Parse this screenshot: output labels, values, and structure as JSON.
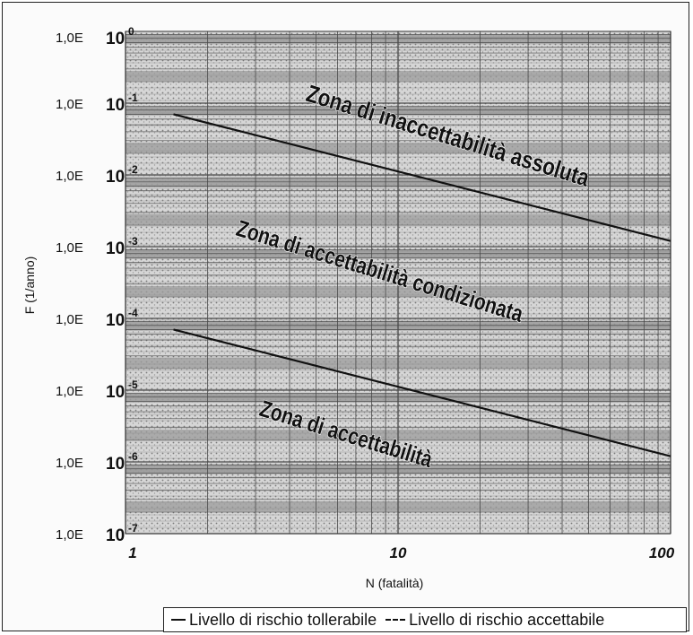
{
  "chart_data": {
    "type": "line",
    "xlabel": "N (fatalità)",
    "ylabel": "F (1/anno)",
    "x_scale": "log",
    "y_scale": "log",
    "xlim": [
      1,
      100
    ],
    "ylim": [
      1e-07,
      1
    ],
    "x_tick_labels": [
      {
        "value": 1,
        "label": "1"
      },
      {
        "value": 10,
        "label": "10"
      },
      {
        "value": 100,
        "label": "100"
      }
    ],
    "y_tick_labels": [
      {
        "value": 1,
        "prefix": "1,0E",
        "base": "10",
        "exp": "0"
      },
      {
        "value": 0.1,
        "prefix": "1,0E",
        "base": "10",
        "exp": "-1"
      },
      {
        "value": 0.01,
        "prefix": "1,0E",
        "base": "10",
        "exp": "-2"
      },
      {
        "value": 0.001,
        "prefix": "1,0E",
        "base": "10",
        "exp": "-3"
      },
      {
        "value": 0.0001,
        "prefix": "1,0E",
        "base": "10",
        "exp": "-4"
      },
      {
        "value": 1e-05,
        "prefix": "1,0E",
        "base": "10",
        "exp": "-5"
      },
      {
        "value": 1e-06,
        "prefix": "1,0E",
        "base": "10",
        "exp": "-6"
      },
      {
        "value": 1e-07,
        "prefix": "1,0E",
        "base": "10",
        "exp": "-7"
      }
    ],
    "series": [
      {
        "name": "Livello di rischio tollerabile",
        "style": "solid",
        "x": [
          1.5,
          100
        ],
        "y": [
          0.07,
          0.0012
        ]
      },
      {
        "name": "Livello di rischio accettabile",
        "style": "dashed",
        "x": [
          1.5,
          100
        ],
        "y": [
          7e-05,
          1.2e-06
        ]
      }
    ],
    "annotations": [
      {
        "text": "Zona di inaccettabilità assoluta"
      },
      {
        "text": "Zona di accettabilità condizionata"
      },
      {
        "text": "Zona di accettabilità"
      }
    ],
    "grid": true,
    "legend_position": "bottom-right",
    "colors": {
      "line": "#111111",
      "band_dark": "#9b9b9b",
      "band_light": "#d6d6d6",
      "grid": "#4a4a4a"
    }
  }
}
